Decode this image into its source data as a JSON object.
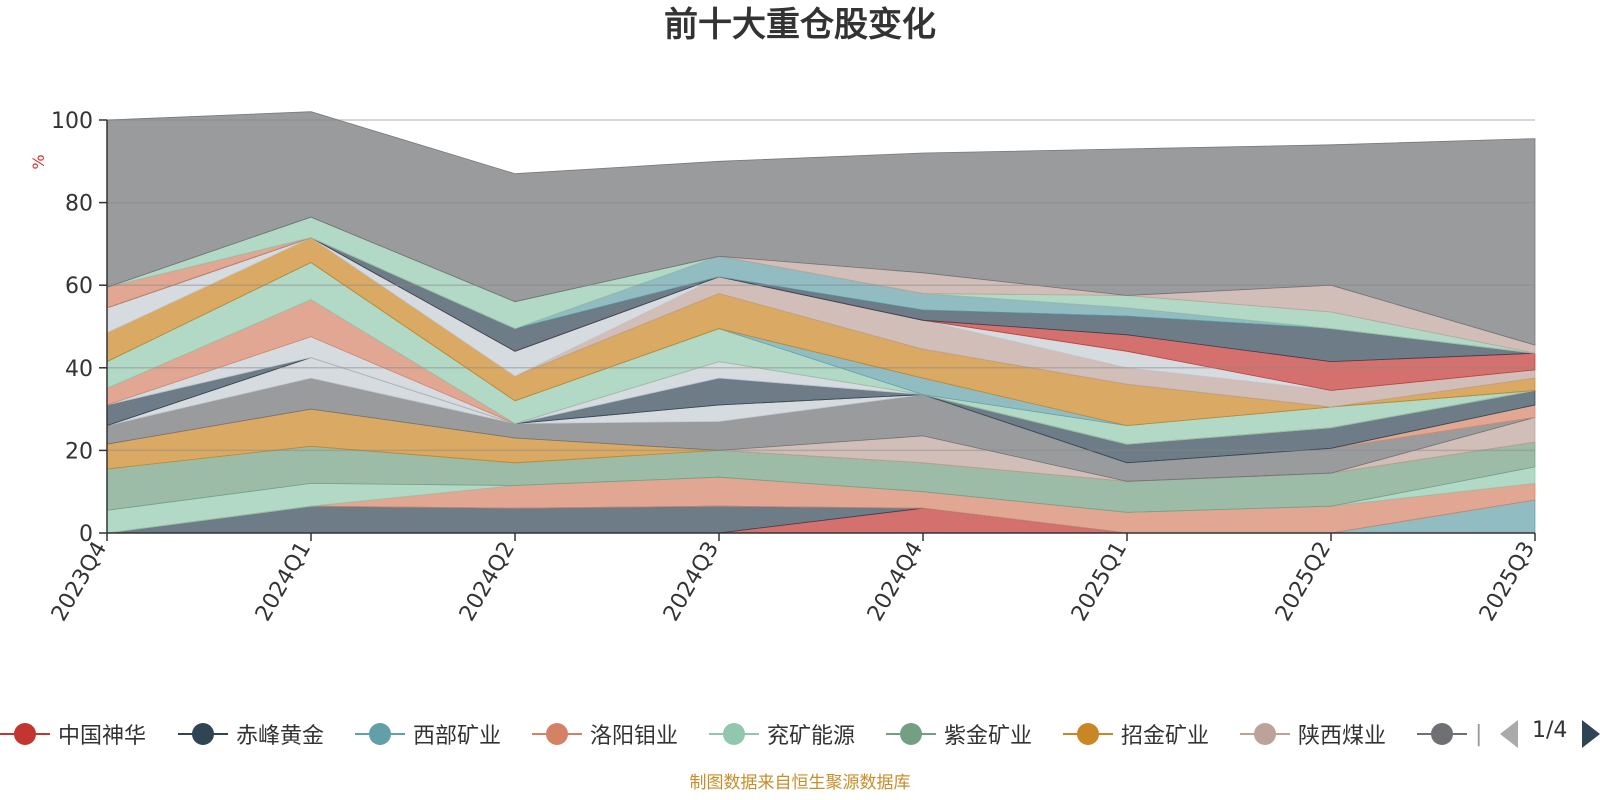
{
  "title": "前十大重仓股变化",
  "source_note": "制图数据来自恒生聚源数据库",
  "pager": {
    "text": "1/4"
  },
  "legend_clip_char": "|",
  "chart_data": {
    "type": "area",
    "stacked": true,
    "title": "前十大重仓股变化",
    "ylabel": "%",
    "ylim": [
      0,
      100
    ],
    "yticks": [
      0,
      20,
      40,
      60,
      80,
      100
    ],
    "categories": [
      "2023Q4",
      "2024Q1",
      "2024Q2",
      "2024Q3",
      "2024Q4",
      "2025Q1",
      "2025Q2",
      "2025Q3"
    ],
    "grid": true,
    "legend_position": "bottom",
    "series": [
      {
        "name": "中国神华",
        "color": "#c23531",
        "values": [
          0,
          0,
          0,
          0,
          6,
          0,
          0,
          0
        ]
      },
      {
        "name": "赤峰黄金",
        "color": "#2f4554",
        "values": [
          0,
          6.5,
          6,
          6.5,
          0,
          0,
          0,
          0
        ]
      },
      {
        "name": "西部矿业",
        "color": "#61a0a8",
        "values": [
          0,
          0,
          0,
          0,
          0,
          0,
          0,
          8
        ]
      },
      {
        "name": "洛阳钼业",
        "color": "#d48265",
        "values": [
          0,
          0,
          5.5,
          7,
          4,
          5,
          6.5,
          4
        ]
      },
      {
        "name": "兖矿能源",
        "color": "#91c7ae",
        "values": [
          5.5,
          5.5,
          0,
          0,
          0,
          0,
          0,
          4
        ]
      },
      {
        "name": "紫金矿业",
        "color": "#749f83",
        "values": [
          10,
          9,
          5.5,
          6.5,
          7,
          7.5,
          8,
          6
        ]
      },
      {
        "name": "招金矿业",
        "color": "#ca8622",
        "values": [
          6,
          9,
          6,
          0,
          0,
          0,
          0,
          0
        ]
      },
      {
        "name": "陕西煤业",
        "color": "#bda29a",
        "values": [
          0,
          0,
          0,
          0,
          6.5,
          0,
          0,
          6
        ]
      },
      {
        "name": "",
        "color": "#6e7074",
        "values": [
          4.5,
          7.5,
          3.5,
          7,
          10,
          4.5,
          6,
          0
        ]
      },
      {
        "name": "",
        "color": "#c4ccd3",
        "values": [
          0,
          5,
          0,
          4,
          0,
          0,
          0,
          0
        ]
      },
      {
        "name": "",
        "color": "#d48265",
        "values": [
          0,
          0,
          0,
          0,
          0,
          0,
          0,
          3
        ]
      },
      {
        "name": "",
        "color": "#61a0a8",
        "values": [
          0,
          0,
          0,
          0,
          0,
          0,
          0,
          0
        ]
      },
      {
        "name": "",
        "color": "#2f4554",
        "values": [
          5,
          0,
          0,
          6.5,
          0,
          4.5,
          5,
          3.5
        ]
      },
      {
        "name": "",
        "color": "#c4ccd3",
        "values": [
          0,
          5,
          0,
          4,
          0,
          0,
          0,
          0
        ]
      },
      {
        "name": "",
        "color": "#d48265",
        "values": [
          4,
          9,
          0,
          0,
          0,
          0,
          0,
          0
        ]
      },
      {
        "name": "",
        "color": "#91c7ae",
        "values": [
          6.5,
          9,
          5.5,
          8,
          0,
          4.5,
          5,
          0
        ]
      },
      {
        "name": "",
        "color": "#61a0a8",
        "values": [
          0,
          0,
          0,
          0,
          4,
          0,
          0,
          0
        ]
      },
      {
        "name": "",
        "color": "#ca8622",
        "values": [
          7,
          6,
          6,
          8.5,
          7,
          10,
          0,
          3
        ]
      },
      {
        "name": "",
        "color": "#bda29a",
        "values": [
          0,
          0,
          0,
          4,
          7,
          4,
          4,
          2
        ]
      },
      {
        "name": "",
        "color": "#c4ccd3",
        "values": [
          6,
          0,
          6,
          0,
          0,
          4,
          0,
          0
        ]
      },
      {
        "name": "",
        "color": "#c23531",
        "values": [
          0,
          0,
          0,
          0,
          0,
          4,
          7,
          4
        ]
      },
      {
        "name": "",
        "color": "#2f4554",
        "values": [
          0,
          0,
          5.5,
          0,
          2.5,
          4.5,
          8,
          0
        ]
      },
      {
        "name": "",
        "color": "#61a0a8",
        "values": [
          0,
          0,
          0,
          5,
          4,
          2,
          0,
          0
        ]
      },
      {
        "name": "",
        "color": "#d48265",
        "values": [
          5,
          0,
          0,
          0,
          0,
          0,
          0,
          0
        ]
      },
      {
        "name": "",
        "color": "#91c7ae",
        "values": [
          0,
          5,
          6.5,
          0,
          0,
          3,
          4,
          0
        ]
      },
      {
        "name": "",
        "color": "#bda29a",
        "values": [
          0,
          0,
          0,
          0,
          5,
          0,
          6.5,
          2
        ]
      },
      {
        "name": "",
        "color": "#6e7074",
        "values": [
          40.5,
          25.5,
          31,
          23,
          29,
          35.5,
          34,
          50
        ]
      }
    ]
  }
}
